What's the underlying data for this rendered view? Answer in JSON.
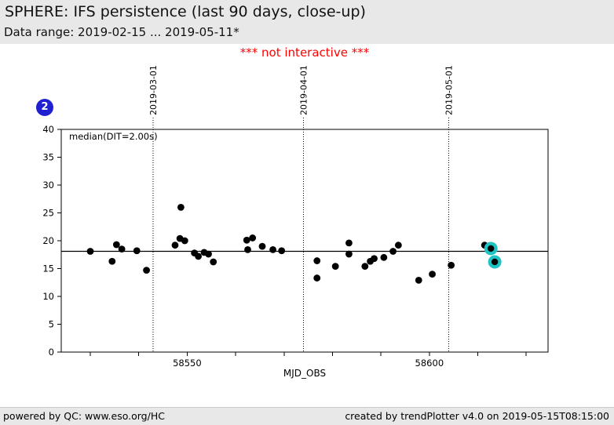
{
  "header": {
    "title": "SPHERE: IFS persistence (last 90 days, close-up)",
    "subtitle": "Data range: 2019-02-15 ... 2019-05-11*"
  },
  "notice": {
    "text": "*** not interactive ***"
  },
  "badge": {
    "label": "2"
  },
  "footer": {
    "left": "powered by QC: www.eso.org/HC",
    "right": "created by trendPlotter v4.0 on 2019-05-15T08:15:00"
  },
  "colors": {
    "page_background": "#ffffff",
    "chrome_background": "#e8e8e8",
    "notice_red": "#ff0000",
    "badge_blue": "#2020d0",
    "point_black": "#000000",
    "highlight_cyan": "#1fc3c3"
  },
  "chart_data": {
    "type": "scatter",
    "xlabel": "MJD_OBS",
    "series_label": "median(DIT=2.00s)",
    "xlim": [
      58524,
      58624.5
    ],
    "ylim": [
      0,
      40
    ],
    "yticks": [
      0,
      5,
      10,
      15,
      20,
      25,
      30,
      35,
      40
    ],
    "xticks": [
      58530,
      58540,
      58550,
      58560,
      58570,
      58580,
      58590,
      58600,
      58610,
      58620
    ],
    "xticks_labeled": [
      58550,
      58600
    ],
    "date_lines": [
      {
        "mjd": 58543,
        "label": "2019-03-01"
      },
      {
        "mjd": 58574,
        "label": "2019-04-01"
      },
      {
        "mjd": 58604,
        "label": "2019-05-01"
      }
    ],
    "median_line": 18.1,
    "grid": "date-lines-only",
    "legend_position": "none",
    "points": [
      [
        58530.0,
        18.1
      ],
      [
        58534.5,
        16.3
      ],
      [
        58535.4,
        19.3
      ],
      [
        58536.5,
        18.5
      ],
      [
        58539.6,
        18.2
      ],
      [
        58541.6,
        14.7
      ],
      [
        58547.5,
        19.2
      ],
      [
        58548.5,
        20.4
      ],
      [
        58548.7,
        26.0
      ],
      [
        58549.5,
        20.0
      ],
      [
        58551.5,
        17.8
      ],
      [
        58552.3,
        17.2
      ],
      [
        58553.5,
        17.9
      ],
      [
        58554.4,
        17.6
      ],
      [
        58555.4,
        16.2
      ],
      [
        58562.3,
        20.1
      ],
      [
        58562.5,
        18.4
      ],
      [
        58563.5,
        20.5
      ],
      [
        58565.5,
        19.0
      ],
      [
        58567.7,
        18.4
      ],
      [
        58569.5,
        18.2
      ],
      [
        58576.8,
        16.4
      ],
      [
        58576.8,
        13.3
      ],
      [
        58580.6,
        15.4
      ],
      [
        58583.4,
        19.6
      ],
      [
        58583.4,
        17.6
      ],
      [
        58586.7,
        15.4
      ],
      [
        58587.8,
        16.3
      ],
      [
        58588.6,
        16.8
      ],
      [
        58590.6,
        17.0
      ],
      [
        58592.5,
        18.1
      ],
      [
        58593.6,
        19.2
      ],
      [
        58597.8,
        12.9
      ],
      [
        58600.6,
        14.0
      ],
      [
        58604.5,
        15.6
      ],
      [
        58611.4,
        19.2
      ]
    ],
    "highlighted_points": [
      [
        58612.7,
        18.6
      ],
      [
        58613.5,
        16.2
      ]
    ]
  }
}
